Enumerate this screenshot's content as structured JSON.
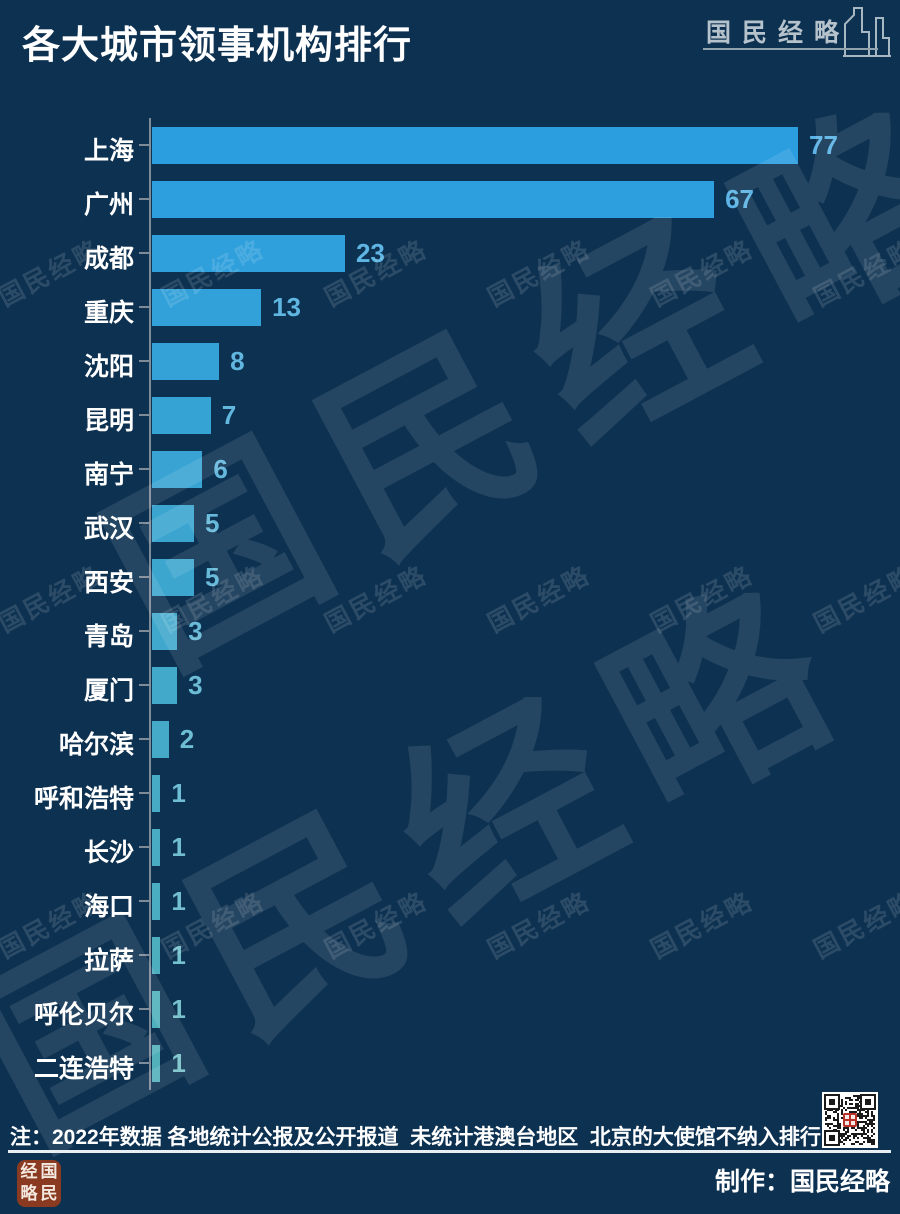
{
  "title": "各大城市领事机构排行",
  "brand": {
    "logo_text": "国民经略",
    "watermark_text": "国民经略",
    "credit_label": "制作：国民经略",
    "seal_chars": [
      "经",
      "国",
      "略",
      "民"
    ]
  },
  "note": "注：2022年数据 各地统计公报及公开报道  未统计港澳台地区  北京的大使馆不纳入排行",
  "colors": {
    "background": "#0d3151",
    "bar_gradient_start": "#2b9ee0",
    "bar_gradient_end": "#52b0ba",
    "city_label": "#ffffff",
    "axis": "#7e8b98",
    "note_text": "#ffffff",
    "logo_text": "#b6c3cc",
    "seal_background": "#8a3a20",
    "qr_dark": "#1a1a1a",
    "qr_light": "#ffffff",
    "qr_center_seal": "#b8322a"
  },
  "chart_data": {
    "type": "bar",
    "orientation": "horizontal",
    "title": "各大城市领事机构排行",
    "xlabel": "",
    "ylabel": "",
    "categories": [
      "上海",
      "广州",
      "成都",
      "重庆",
      "沈阳",
      "昆明",
      "南宁",
      "武汉",
      "西安",
      "青岛",
      "厦门",
      "哈尔滨",
      "呼和浩特",
      "长沙",
      "海口",
      "拉萨",
      "呼伦贝尔",
      "二连浩特"
    ],
    "values": [
      77,
      67,
      23,
      13,
      8,
      7,
      6,
      5,
      5,
      3,
      3,
      2,
      1,
      1,
      1,
      1,
      1,
      1
    ],
    "xlim": [
      0,
      88
    ],
    "grid": false,
    "legend": false,
    "value_labels": true
  }
}
